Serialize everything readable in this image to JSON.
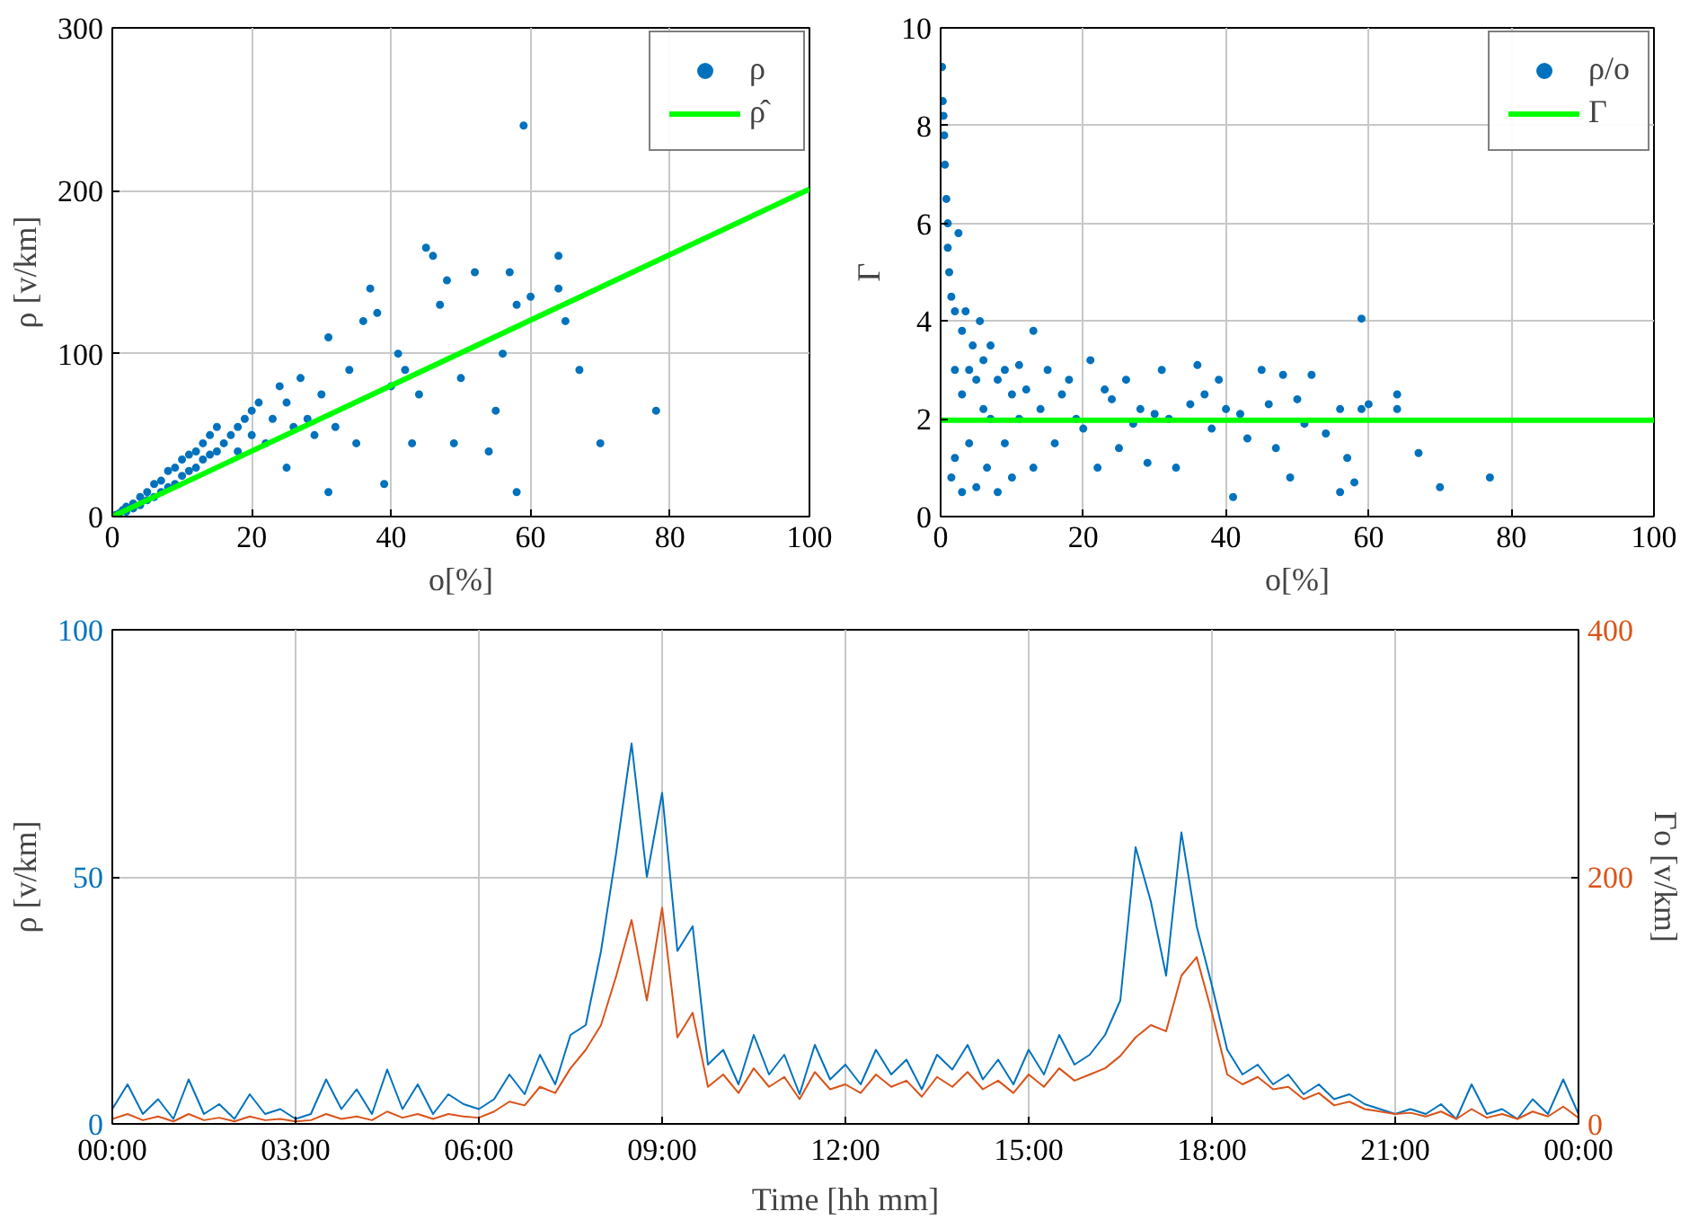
{
  "chart_data": [
    {
      "type": "scatter",
      "xlabel": "o[%]",
      "ylabel": "ρ [v/km]",
      "xlim": [
        0,
        100
      ],
      "ylim": [
        0,
        300
      ],
      "xticks": [
        0,
        20,
        40,
        60,
        80,
        100
      ],
      "yticks": [
        0,
        100,
        200,
        300
      ],
      "grid": true,
      "legend": "top right",
      "series": [
        {
          "name": "ρ",
          "color": "#0072bd",
          "marker": "circle",
          "x": [
            0.5,
            1,
            1.5,
            2,
            2,
            3,
            3,
            4,
            4,
            5,
            5,
            6,
            6,
            7,
            7,
            8,
            8,
            9,
            9,
            10,
            10,
            11,
            11,
            12,
            12,
            13,
            13,
            14,
            14,
            15,
            15,
            16,
            17,
            18,
            18,
            19,
            20,
            20,
            21,
            22,
            23,
            24,
            25,
            25,
            26,
            27,
            28,
            29,
            30,
            31,
            31,
            32,
            34,
            35,
            36,
            37,
            38,
            39,
            40,
            41,
            42,
            43,
            44,
            45,
            46,
            47,
            48,
            49,
            50,
            52,
            54,
            55,
            56,
            57,
            58,
            58,
            59,
            60,
            64,
            64,
            65,
            67,
            70,
            78
          ],
          "values": [
            1,
            2,
            4,
            3,
            6,
            5,
            8,
            7,
            12,
            10,
            15,
            12,
            20,
            15,
            22,
            18,
            28,
            20,
            30,
            25,
            35,
            28,
            38,
            30,
            40,
            35,
            45,
            38,
            50,
            40,
            55,
            45,
            50,
            55,
            40,
            60,
            50,
            65,
            70,
            45,
            60,
            80,
            70,
            30,
            55,
            85,
            60,
            50,
            75,
            110,
            15,
            55,
            90,
            45,
            120,
            140,
            125,
            20,
            80,
            100,
            90,
            45,
            75,
            165,
            160,
            130,
            145,
            45,
            85,
            150,
            40,
            65,
            100,
            150,
            15,
            130,
            240,
            135,
            160,
            140,
            120,
            90,
            45,
            65
          ]
        },
        {
          "name": "ρ̂",
          "type": "line",
          "marker": "none",
          "color": "#00ff00",
          "x": [
            0,
            100
          ],
          "values": [
            0,
            201
          ]
        }
      ]
    },
    {
      "type": "scatter",
      "xlabel": "o[%]",
      "ylabel": "Γ",
      "xlim": [
        0,
        100
      ],
      "ylim": [
        0,
        10
      ],
      "xticks": [
        0,
        20,
        40,
        60,
        80,
        100
      ],
      "yticks": [
        0,
        2,
        4,
        6,
        8,
        10
      ],
      "grid": true,
      "legend": "top right",
      "series": [
        {
          "name": "ρ/o",
          "color": "#0072bd",
          "marker": "circle",
          "x": [
            0.2,
            0.3,
            0.4,
            0.5,
            0.6,
            0.8,
            1,
            1,
            1.2,
            1.5,
            1.5,
            2,
            2,
            2,
            2.5,
            3,
            3,
            3,
            3.5,
            4,
            4,
            4.5,
            5,
            5,
            5.5,
            6,
            6,
            6.5,
            7,
            7,
            8,
            8,
            9,
            9,
            10,
            10,
            11,
            11,
            12,
            13,
            13,
            14,
            15,
            16,
            17,
            18,
            19,
            20,
            21,
            22,
            23,
            24,
            25,
            26,
            27,
            28,
            29,
            30,
            31,
            32,
            33,
            35,
            36,
            37,
            38,
            39,
            40,
            41,
            42,
            43,
            45,
            46,
            47,
            48,
            49,
            50,
            51,
            52,
            54,
            56,
            56,
            57,
            58,
            59,
            59,
            60,
            64,
            64,
            67,
            70,
            77
          ],
          "values": [
            9.2,
            8.5,
            8.2,
            7.8,
            7.2,
            6.5,
            6.0,
            5.5,
            5.0,
            4.5,
            0.8,
            4.2,
            3.0,
            1.2,
            5.8,
            3.8,
            2.5,
            0.5,
            4.2,
            3.0,
            1.5,
            3.5,
            2.8,
            0.6,
            4.0,
            2.2,
            3.2,
            1.0,
            3.5,
            2.0,
            2.8,
            0.5,
            3.0,
            1.5,
            2.5,
            0.8,
            3.1,
            2.0,
            2.6,
            3.8,
            1.0,
            2.2,
            3.0,
            1.5,
            2.5,
            2.8,
            2.0,
            1.8,
            3.2,
            1.0,
            2.6,
            2.4,
            1.4,
            2.8,
            1.9,
            2.2,
            1.1,
            2.1,
            3.0,
            2.0,
            1.0,
            2.3,
            3.1,
            2.5,
            1.8,
            2.8,
            2.2,
            0.4,
            2.1,
            1.6,
            3.0,
            2.3,
            1.4,
            2.9,
            0.8,
            2.4,
            1.9,
            2.9,
            1.7,
            2.2,
            0.5,
            1.2,
            0.7,
            2.2,
            4.05,
            2.3,
            2.2,
            2.5,
            1.3,
            0.6,
            0.8
          ]
        },
        {
          "name": "Γ",
          "type": "line",
          "marker": "none",
          "color": "#00ff00",
          "x": [
            0,
            100
          ],
          "values": [
            1.97,
            1.97
          ]
        }
      ]
    },
    {
      "type": "line",
      "xlabel": "Time [hh mm]",
      "ylabel": "ρ [v/km]",
      "y2label": "Γo [v/km]",
      "xlim": [
        0,
        24
      ],
      "ylim": [
        0,
        100
      ],
      "y2lim": [
        0,
        400
      ],
      "xticks": [
        {
          "value": 0,
          "label": "00:00"
        },
        {
          "value": 3,
          "label": "03:00"
        },
        {
          "value": 6,
          "label": "06:00"
        },
        {
          "value": 9,
          "label": "09:00"
        },
        {
          "value": 12,
          "label": "12:00"
        },
        {
          "value": 15,
          "label": "15:00"
        },
        {
          "value": 18,
          "label": "18:00"
        },
        {
          "value": 21,
          "label": "21:00"
        },
        {
          "value": 24,
          "label": "00:00"
        }
      ],
      "yticks": [
        0,
        50,
        100
      ],
      "y2ticks": [
        0,
        200,
        400
      ],
      "grid": true,
      "x": [
        0,
        0.25,
        0.5,
        0.75,
        1,
        1.25,
        1.5,
        1.75,
        2,
        2.25,
        2.5,
        2.75,
        3,
        3.25,
        3.5,
        3.75,
        4,
        4.25,
        4.5,
        4.75,
        5,
        5.25,
        5.5,
        5.75,
        6,
        6.25,
        6.5,
        6.75,
        7,
        7.25,
        7.5,
        7.75,
        8,
        8.25,
        8.5,
        8.75,
        9,
        9.25,
        9.5,
        9.75,
        10,
        10.25,
        10.5,
        10.75,
        11,
        11.25,
        11.5,
        11.75,
        12,
        12.25,
        12.5,
        12.75,
        13,
        13.25,
        13.5,
        13.75,
        14,
        14.25,
        14.5,
        14.75,
        15,
        15.25,
        15.5,
        15.75,
        16,
        16.25,
        16.5,
        16.75,
        17,
        17.25,
        17.5,
        17.75,
        18,
        18.25,
        18.5,
        18.75,
        19,
        19.25,
        19.5,
        19.75,
        20,
        20.25,
        20.5,
        20.75,
        21,
        21.25,
        21.5,
        21.75,
        22,
        22.25,
        22.5,
        22.75,
        23,
        23.25,
        23.5,
        23.75,
        24
      ],
      "series": [
        {
          "color": "#0072bd",
          "values": [
            3,
            8,
            2,
            5,
            1,
            9,
            2,
            4,
            1,
            6,
            2,
            3,
            1,
            2,
            9,
            3,
            7,
            2,
            11,
            3,
            8,
            2,
            6,
            4,
            3,
            5,
            10,
            6,
            14,
            8,
            18,
            20,
            35,
            55,
            77,
            50,
            67,
            35,
            40,
            12,
            15,
            8,
            18,
            10,
            14,
            6,
            16,
            9,
            12,
            8,
            15,
            10,
            13,
            7,
            14,
            11,
            16,
            9,
            13,
            8,
            15,
            10,
            18,
            12,
            14,
            18,
            25,
            56,
            45,
            30,
            59,
            40,
            28,
            15,
            10,
            12,
            8,
            10,
            6,
            8,
            5,
            6,
            4,
            3,
            2,
            3,
            2,
            4,
            1,
            8,
            2,
            3,
            1,
            5,
            2,
            9,
            2
          ]
        },
        {
          "color": "#d95319",
          "axis": "y2",
          "values": [
            4,
            8,
            3,
            6,
            2,
            8,
            3,
            5,
            2,
            6,
            3,
            4,
            2,
            3,
            8,
            4,
            6,
            3,
            10,
            5,
            8,
            4,
            8,
            6,
            5,
            10,
            18,
            15,
            30,
            25,
            45,
            60,
            80,
            120,
            165,
            100,
            175,
            70,
            90,
            30,
            40,
            25,
            45,
            30,
            38,
            20,
            42,
            28,
            32,
            25,
            40,
            30,
            35,
            22,
            38,
            30,
            42,
            28,
            35,
            25,
            40,
            30,
            45,
            35,
            40,
            45,
            55,
            70,
            80,
            75,
            120,
            135,
            90,
            40,
            32,
            38,
            28,
            30,
            20,
            25,
            15,
            18,
            12,
            10,
            8,
            9,
            6,
            10,
            4,
            12,
            5,
            8,
            4,
            10,
            6,
            14,
            5
          ]
        }
      ]
    }
  ]
}
